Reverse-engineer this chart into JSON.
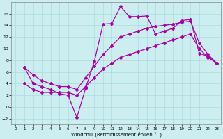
{
  "xlabel": "Windchill (Refroidissement éolien,°C)",
  "bg_color": "#cceef0",
  "grid_color": "#aadddd",
  "line_color": "#aa00aa",
  "xlim": [
    -0.5,
    23.5
  ],
  "ylim": [
    -3,
    18
  ],
  "xticks": [
    0,
    1,
    2,
    3,
    4,
    5,
    6,
    7,
    8,
    9,
    10,
    11,
    12,
    13,
    14,
    15,
    16,
    17,
    18,
    19,
    20,
    21,
    22,
    23
  ],
  "yticks": [
    -2,
    0,
    2,
    4,
    6,
    8,
    10,
    12,
    14,
    16
  ],
  "jagged_x": [
    1,
    2,
    3,
    4,
    5,
    6,
    7,
    8,
    9,
    10,
    11,
    12,
    13,
    14,
    15,
    16,
    17,
    18,
    19,
    20,
    21,
    22,
    23
  ],
  "jagged_y": [
    6.8,
    4.0,
    3.5,
    3.0,
    2.3,
    2.0,
    -1.8,
    3.2,
    7.8,
    14.2,
    14.3,
    17.2,
    15.5,
    15.5,
    15.6,
    12.5,
    13.0,
    13.5,
    14.8,
    15.0,
    9.2,
    8.7,
    7.5
  ],
  "smooth_low_x": [
    1,
    2,
    3,
    4,
    5,
    6,
    7,
    8,
    9,
    10,
    11,
    12,
    13,
    14,
    15,
    16,
    17,
    18,
    19,
    20,
    21,
    22,
    23
  ],
  "smooth_low_y": [
    4.0,
    3.0,
    2.5,
    2.5,
    2.5,
    2.5,
    2.0,
    3.5,
    5.0,
    6.5,
    7.5,
    8.5,
    9.0,
    9.5,
    10.0,
    10.5,
    11.0,
    11.5,
    12.0,
    12.5,
    10.0,
    8.5,
    7.5
  ],
  "smooth_high_x": [
    1,
    2,
    3,
    4,
    5,
    6,
    7,
    8,
    9,
    10,
    11,
    12,
    13,
    14,
    15,
    16,
    17,
    18,
    19,
    20,
    21,
    22,
    23
  ],
  "smooth_high_y": [
    6.8,
    5.5,
    4.5,
    4.0,
    3.5,
    3.5,
    3.0,
    5.0,
    7.0,
    9.0,
    10.5,
    12.0,
    12.5,
    13.0,
    13.5,
    13.8,
    14.0,
    14.2,
    14.5,
    14.7,
    11.0,
    9.0,
    7.5
  ]
}
